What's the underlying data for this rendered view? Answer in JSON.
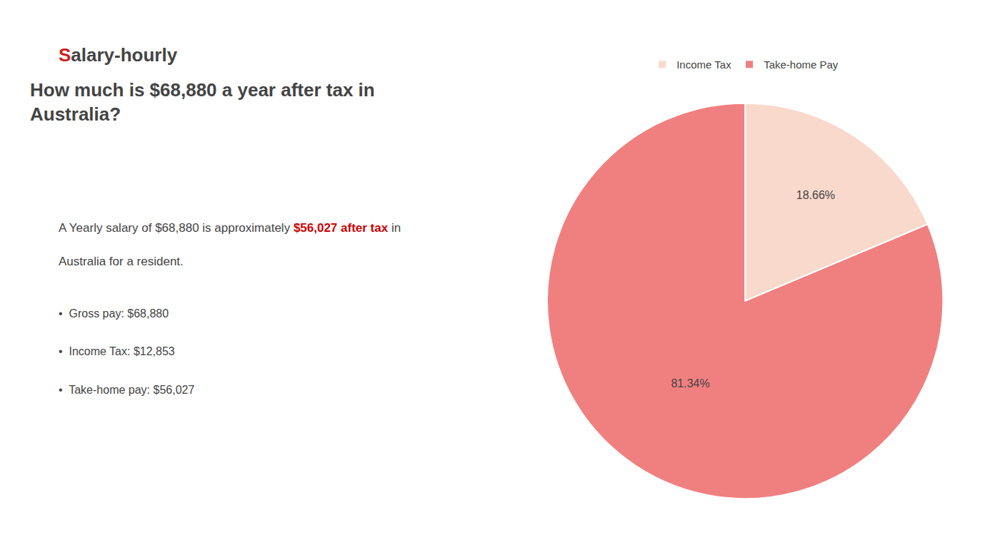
{
  "chart_data": {
    "type": "pie",
    "title": "How much is $68,880 a year after tax in\nAustralia?",
    "categories": [
      "Income Tax",
      "Take-home Pay"
    ],
    "values": [
      18.66,
      81.34
    ],
    "value_labels": [
      "18.66%",
      "81.34%"
    ],
    "colors": [
      "#f9d9cc",
      "#f08080"
    ],
    "data_labels": true,
    "legend": "top",
    "annotations": [
      [
        {
          "text": "S",
          "color": "#cc2222"
        },
        {
          "text": "alary-hourly"
        }
      ],
      [
        {
          "text": "A Yearly salary of $68,880 is approximately "
        },
        {
          "text": "$56,027 after tax",
          "color": "#cc0000"
        },
        {
          "text": " in"
        }
      ],
      [
        {
          "text": "Australia for a resident."
        }
      ],
      [
        {
          "text": "•  Gross pay: $68,880"
        }
      ],
      [
        {
          "text": "•  Income Tax: $12,853"
        }
      ],
      [
        {
          "text": "•  Take-home pay: $56,027"
        }
      ]
    ]
  }
}
